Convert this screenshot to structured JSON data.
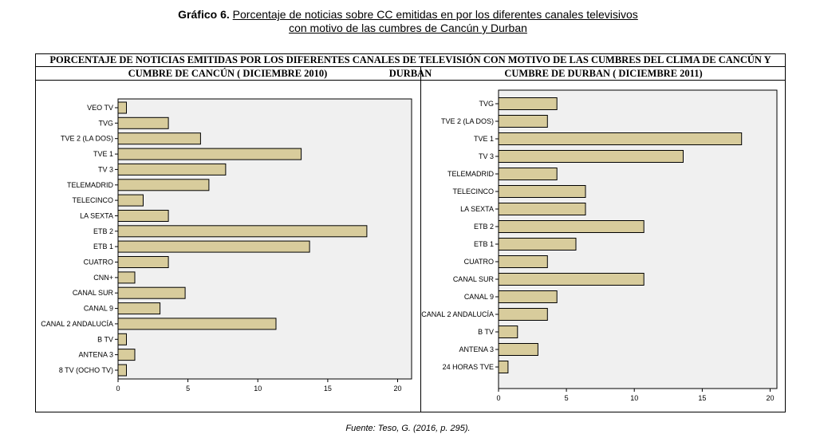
{
  "caption": {
    "figure_label": "Gráfico 6.",
    "line1": "Porcentaje de noticias sobre CC emitidas en por los diferentes canales televisivos",
    "line2": "con motivo de las cumbres de Cancún y Durban"
  },
  "main_title": "PORCENTAJE DE NOTICIAS EMITIDAS POR LOS DIFERENTES CANALES DE TELEVISIÓN CON MOTIVO DE LAS CUMBRES DEL CLIMA DE CANCÚN Y DURBAN",
  "footer": "Fuente: Teso, G. (2016, p. 295).",
  "colors": {
    "bar_fill": "#d8cc9c",
    "bar_stroke": "#000000",
    "plot_bg": "#f0f0f0"
  },
  "chart_data": [
    {
      "type": "bar",
      "orientation": "horizontal",
      "title": "CUMBRE DE CANCÚN ( DICIEMBRE 2010)",
      "categories": [
        "VEO TV",
        "TVG",
        "TVE 2 (LA DOS)",
        "TVE 1",
        "TV 3",
        "TELEMADRID",
        "TELECINCO",
        "LA SEXTA",
        "ETB 2",
        "ETB 1",
        "CUATRO",
        "CNN+",
        "CANAL SUR",
        "CANAL 9",
        "CANAL 2 ANDALUCÍA",
        "B TV",
        "ANTENA 3",
        "8 TV (OCHO TV)"
      ],
      "values": [
        0.6,
        3.6,
        5.9,
        13.1,
        7.7,
        6.5,
        1.8,
        3.6,
        17.8,
        13.7,
        3.6,
        1.2,
        4.8,
        3.0,
        11.3,
        0.6,
        1.2,
        0.6
      ],
      "xlim": [
        0,
        21
      ],
      "ticks": [
        "0",
        "5",
        "10",
        "15",
        "20"
      ],
      "tick_values": [
        0,
        5,
        10,
        15,
        20
      ]
    },
    {
      "type": "bar",
      "orientation": "horizontal",
      "title": "CUMBRE DE DURBAN ( DICIEMBRE 2011)",
      "categories": [
        "TVG",
        "TVE 2 (LA DOS)",
        "TVE 1",
        "TV 3",
        "TELEMADRID",
        "TELECINCO",
        "LA SEXTA",
        "ETB 2",
        "ETB 1",
        "CUATRO",
        "CANAL SUR",
        "CANAL 9",
        "CANAL 2 ANDALUCÍA",
        "B TV",
        "ANTENA 3",
        "24 HORAS TVE"
      ],
      "values": [
        4.3,
        3.6,
        17.9,
        13.6,
        4.3,
        6.4,
        6.4,
        10.7,
        5.7,
        3.6,
        10.7,
        4.3,
        3.6,
        1.4,
        2.9,
        0.7
      ],
      "xlim": [
        0,
        20.5
      ],
      "ticks": [
        "0",
        "5",
        "10",
        "15",
        "20"
      ],
      "tick_values": [
        0,
        5,
        10,
        15,
        20
      ]
    }
  ]
}
